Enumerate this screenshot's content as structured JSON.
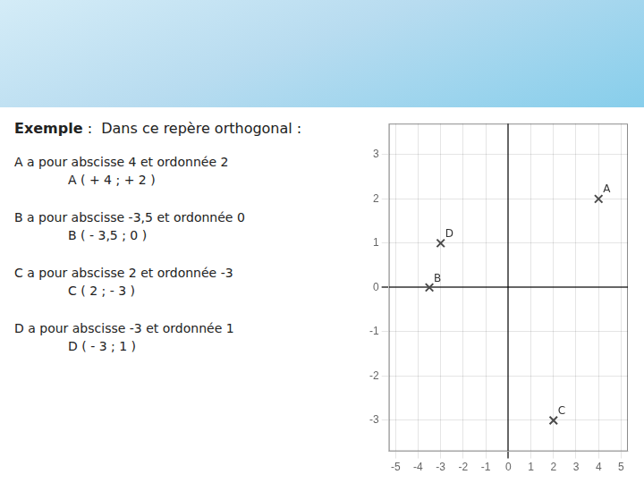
{
  "chart_data": {
    "type": "scatter",
    "title": "Exemple",
    "subtitle": " :  Dans ce repère orthogonal :",
    "annotations": [
      "A a pour abscisse 4 et ordonnée 2",
      "A ( + 4 ; + 2 )",
      "B a pour abscisse -3,5 et ordonnée 0",
      "B ( - 3,5 ; 0 )",
      "C a pour abscisse 2 et ordonnée -3",
      "C ( 2 ; - 3 )",
      "D a pour abscisse -3 et ordonnée 1",
      "D ( - 3 ; 1 )"
    ],
    "x": [
      4,
      -3.5,
      2,
      -3
    ],
    "values": [
      2,
      0,
      -3,
      1
    ],
    "point_labels": [
      "A",
      "B",
      "C",
      "D"
    ],
    "color": "#4A4A4A",
    "marker": "cross",
    "xlim": [
      -5.3,
      5.3
    ],
    "ylim": [
      -3.7,
      3.7
    ],
    "xticks": [
      -5,
      -4,
      -3,
      -2,
      -1,
      0,
      1,
      2,
      3,
      4,
      5
    ],
    "yticks": [
      -3,
      -2,
      -1,
      0,
      1,
      2,
      3
    ],
    "grid": true
  }
}
